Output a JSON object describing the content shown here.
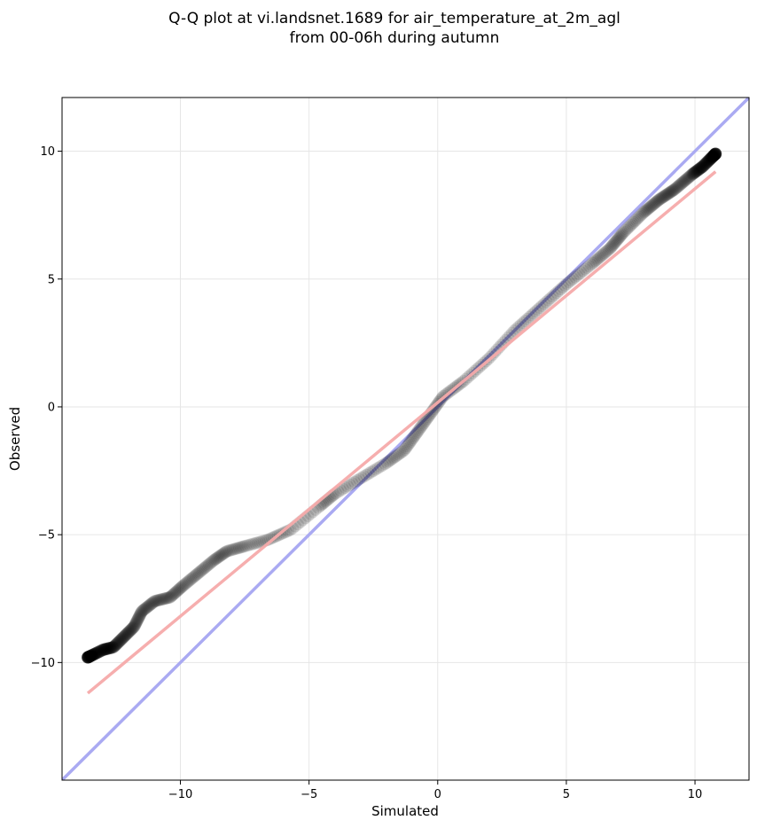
{
  "chart_data": {
    "type": "scatter",
    "title": [
      "Q-Q plot at vi.landsnet.1689 for air_temperature_at_2m_agl",
      "from 00-06h during autumn"
    ],
    "xlabel": "Simulated",
    "ylabel": "Observed",
    "xlim": [
      -14.6,
      12.1
    ],
    "ylim": [
      -14.6,
      12.1
    ],
    "xticks": [
      -10,
      -5,
      0,
      5,
      10
    ],
    "yticks": [
      -10,
      -5,
      0,
      5,
      10
    ],
    "xtick_labels": [
      "−10",
      "−5",
      "0",
      "5",
      "10"
    ],
    "ytick_labels": [
      "−10",
      "−5",
      "0",
      "5",
      "10"
    ],
    "grid": true,
    "reference_line": {
      "name": "1:1 line",
      "color": "#aaaaf2",
      "points": [
        [
          -14.6,
          -14.6
        ],
        [
          12.1,
          12.1
        ]
      ]
    },
    "fit_line": {
      "name": "fit",
      "color": "#f5aaaa",
      "points": [
        [
          -13.6,
          -11.2
        ],
        [
          10.8,
          9.2
        ]
      ]
    },
    "quantile_anchors": [
      [
        -13.6,
        -9.8
      ],
      [
        -13.0,
        -9.5
      ],
      [
        -12.6,
        -9.4
      ],
      [
        -12.2,
        -9.0
      ],
      [
        -11.8,
        -8.6
      ],
      [
        -11.5,
        -8.0
      ],
      [
        -11.0,
        -7.6
      ],
      [
        -10.4,
        -7.45
      ],
      [
        -9.9,
        -7.0
      ],
      [
        -9.3,
        -6.5
      ],
      [
        -8.7,
        -6.0
      ],
      [
        -8.2,
        -5.65
      ],
      [
        -7.5,
        -5.45
      ],
      [
        -6.6,
        -5.2
      ],
      [
        -5.7,
        -4.8
      ],
      [
        -4.6,
        -3.9
      ],
      [
        -4.0,
        -3.4
      ],
      [
        -3.0,
        -2.8
      ],
      [
        -2.0,
        -2.2
      ],
      [
        -1.3,
        -1.7
      ],
      [
        -0.8,
        -1.0
      ],
      [
        -0.3,
        -0.3
      ],
      [
        0.2,
        0.4
      ],
      [
        1.0,
        1.0
      ],
      [
        2.0,
        1.9
      ],
      [
        3.0,
        3.0
      ],
      [
        4.0,
        3.9
      ],
      [
        5.0,
        4.8
      ],
      [
        6.0,
        5.6
      ],
      [
        6.7,
        6.2
      ],
      [
        7.2,
        6.8
      ],
      [
        8.0,
        7.6
      ],
      [
        8.6,
        8.1
      ],
      [
        9.2,
        8.5
      ],
      [
        9.9,
        9.1
      ],
      [
        10.3,
        9.4
      ],
      [
        10.8,
        9.9
      ]
    ],
    "point_count": 620,
    "point_color": "#000000"
  }
}
